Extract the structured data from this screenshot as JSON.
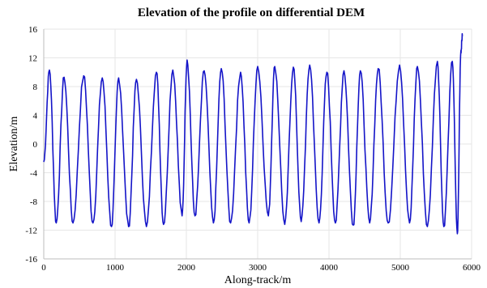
{
  "chart_data": {
    "type": "line",
    "title": "Elevation of the profile on differential DEM",
    "xlabel": "Along-track/m",
    "ylabel": "Elevation/m",
    "xlim": [
      0,
      6000
    ],
    "ylim": [
      -16,
      16
    ],
    "x_ticks": [
      "0",
      "1000",
      "2000",
      "3000",
      "4000",
      "5000",
      "6000"
    ],
    "y_ticks": [
      "16",
      "12",
      "8",
      "4",
      "0",
      "-4",
      "-8",
      "-12",
      "-16"
    ],
    "grid": true,
    "line_color": "#1414c8",
    "series": [
      {
        "x": [
          0,
          80,
          175,
          285,
          410,
          560,
          690,
          820,
          950,
          1050,
          1190,
          1300,
          1440,
          1580,
          1680,
          1810,
          1940,
          2010,
          2120,
          2250,
          2380,
          2490,
          2620,
          2760,
          2880,
          3000,
          3150,
          3240,
          3380,
          3500,
          3610,
          3730,
          3860,
          3970,
          4090,
          4210,
          4340,
          4440,
          4570,
          4690,
          4830,
          4990,
          5130,
          5240,
          5380,
          5520,
          5610,
          5730,
          5800,
          5850,
          5870
        ],
        "y": [
          -2.5,
          10.3,
          -11.0,
          9.3,
          -11.0,
          9.5,
          -11.0,
          9.2,
          -11.5,
          9.2,
          -11.5,
          9.0,
          -11.5,
          10.0,
          -11.2,
          10.3,
          -10.0,
          11.7,
          -10.0,
          10.2,
          -11.0,
          10.5,
          -11.0,
          10.0,
          -11.0,
          10.8,
          -10.0,
          10.8,
          -11.2,
          10.7,
          -10.8,
          11.0,
          -11.0,
          10.0,
          -11.0,
          10.2,
          -11.3,
          10.2,
          -11.0,
          10.5,
          -11.0,
          11.0,
          -11.0,
          10.8,
          -11.5,
          11.5,
          -11.5,
          11.5,
          -12.5,
          13.0,
          15.0
        ]
      }
    ]
  }
}
